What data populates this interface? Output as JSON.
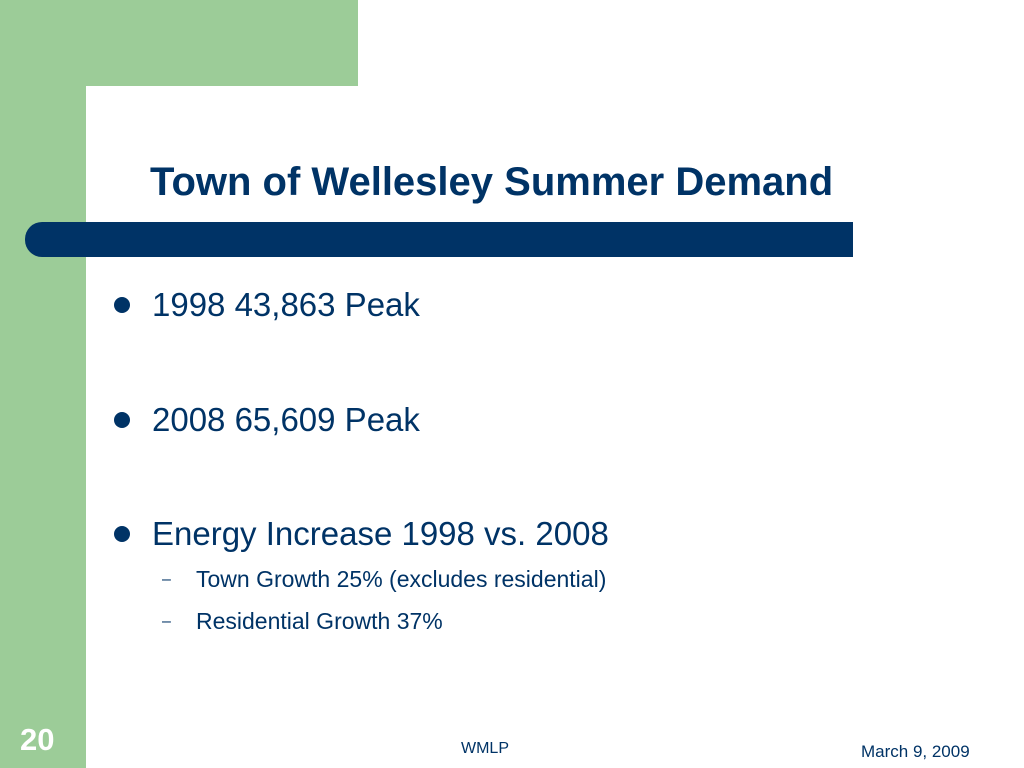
{
  "slide": {
    "title": "Town of Wellesley Summer Demand",
    "bullets": [
      {
        "text": "1998 43,863 Peak"
      },
      {
        "text": "2008 65,609 Peak"
      },
      {
        "text": "Energy Increase 1998 vs. 2008"
      }
    ],
    "sub_bullets": [
      {
        "marker": "–",
        "text": "Town Growth 25% (excludes residential)"
      },
      {
        "marker": "–",
        "text": "Residential Growth 37%"
      }
    ],
    "footer": {
      "page_number": "20",
      "center": "WMLP",
      "date": "March 9, 2009"
    },
    "colors": {
      "accent_green": "#9ccc98",
      "navy": "#003366",
      "background": "#ffffff"
    }
  }
}
